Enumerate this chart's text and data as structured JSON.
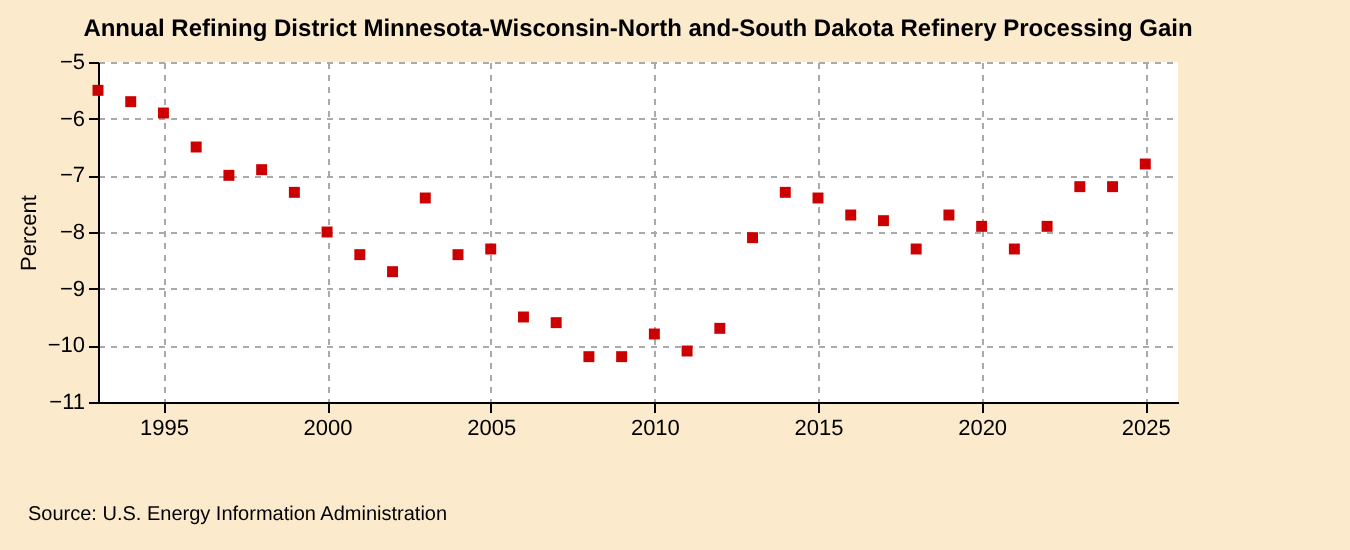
{
  "chart_data": {
    "type": "scatter",
    "title": "Annual Refining District Minnesota-Wisconsin-North and-South Dakota Refinery Processing Gain",
    "ylabel": "Percent",
    "annotations": [
      "Source: U.S. Energy Information Administration"
    ],
    "x": [
      1993,
      1994,
      1995,
      1996,
      1997,
      1998,
      1999,
      2000,
      2001,
      2002,
      2003,
      2004,
      2005,
      2006,
      2007,
      2008,
      2009,
      2010,
      2011,
      2012,
      2013,
      2014,
      2015,
      2016,
      2017,
      2018,
      2019,
      2020,
      2021,
      2022,
      2023,
      2024,
      2025
    ],
    "series": [
      {
        "color": "#cc0000",
        "values": [
          -5.5,
          -5.7,
          -5.9,
          -6.5,
          -7.0,
          -6.9,
          -7.3,
          -8.0,
          -8.4,
          -8.7,
          -7.4,
          -8.4,
          -8.3,
          -9.5,
          -9.6,
          -10.2,
          -10.2,
          -9.8,
          -10.1,
          -9.7,
          -8.1,
          -7.3,
          -7.4,
          -7.7,
          -7.8,
          -8.3,
          -7.7,
          -7.9,
          -8.3,
          -7.9,
          -7.2,
          -7.2,
          -6.8
        ]
      }
    ],
    "xlim": [
      1993,
      2026
    ],
    "xticks": [
      1995,
      2000,
      2005,
      2010,
      2015,
      2020,
      2025
    ],
    "ylim": [
      -11,
      -5
    ],
    "yticks": [
      -11,
      -10,
      -9,
      -8,
      -7,
      -6,
      -5
    ],
    "grid": true,
    "marker": "square"
  }
}
